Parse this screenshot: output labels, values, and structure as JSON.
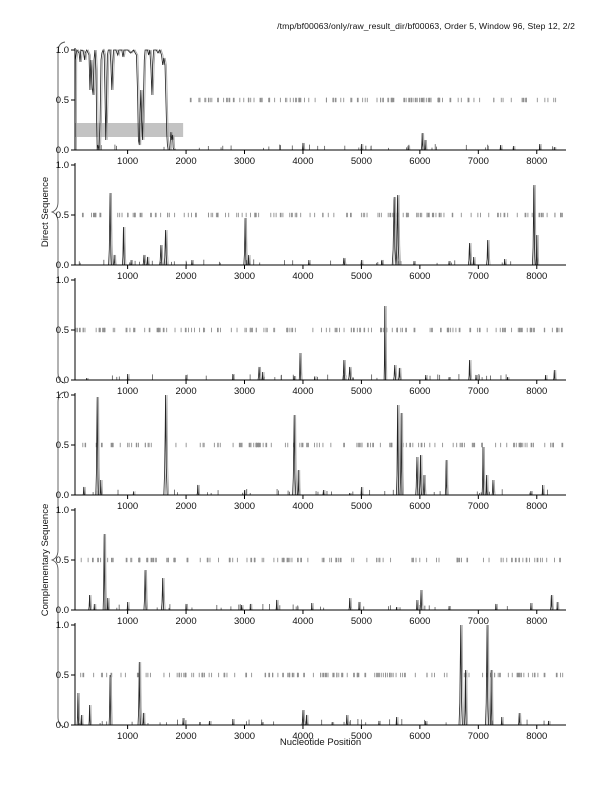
{
  "title": "/tmp/bf00063/only/raw_result_dir/bf00063, Order 5, Window 96, Step 12, 2/2",
  "xlabel": "Nucleotide Position",
  "group_labels": {
    "top": "Direct Sequence",
    "bottom": "Complementary Sequence"
  },
  "colors": {
    "curve": "#222222",
    "curve_shadow": "#a8a8a8",
    "axis": "#000000",
    "ruler_tick": "#8f8f8f",
    "highlight_bar": "#c3c3c3",
    "background": "#ffffff"
  },
  "chart_data": {
    "type": "line",
    "title": "/tmp/bf00063/only/raw_result_dir/bf00063, Order 5, Window 96, Step 12, 2/2",
    "xlabel": "Nucleotide Position",
    "ylabel": "",
    "xlim": [
      100,
      8500
    ],
    "ylim": [
      0,
      1
    ],
    "xticks": [
      1000,
      2000,
      3000,
      4000,
      5000,
      6000,
      7000,
      8000
    ],
    "yticks": [
      0,
      0.5,
      1
    ],
    "grid": false,
    "legend": "none",
    "groups": [
      {
        "label": "Direct Sequence",
        "subplots": [
          0,
          1,
          2
        ]
      },
      {
        "label": "Complementary Sequence",
        "subplots": [
          3,
          4,
          5
        ]
      }
    ],
    "subplots": [
      {
        "name": "direct-1",
        "highlight_bar": {
          "x0": 100,
          "x1": 1950,
          "y0": 0.13,
          "y1": 0.27
        },
        "ruler_ticks": {
          "seed": 101,
          "count": 115,
          "xmin": 2050,
          "xmax": 8460,
          "y": 0.5
        },
        "baseline_ticks": {
          "seed": 11,
          "count": 34
        },
        "polyline": [
          [
            100,
            0
          ],
          [
            105,
            0.9
          ],
          [
            130,
            1.0
          ],
          [
            170,
            0.97
          ],
          [
            185,
            0.88
          ],
          [
            200,
            1.0
          ],
          [
            240,
            0.99
          ],
          [
            265,
            0.9
          ],
          [
            275,
            0.97
          ],
          [
            300,
            1.0
          ],
          [
            340,
            0.95
          ],
          [
            355,
            0.6
          ],
          [
            370,
            0.9
          ],
          [
            395,
            0.62
          ],
          [
            410,
            0.55
          ],
          [
            425,
            0.9
          ],
          [
            440,
            1.0
          ],
          [
            460,
            0.8
          ],
          [
            470,
            0.3
          ],
          [
            480,
            0.0
          ],
          [
            490,
            0.05
          ],
          [
            510,
            0.0
          ],
          [
            530,
            0.3
          ],
          [
            545,
            0.9
          ],
          [
            560,
            0.97
          ],
          [
            580,
            1.0
          ],
          [
            600,
            0.95
          ],
          [
            615,
            0.5
          ],
          [
            625,
            0.1
          ],
          [
            640,
            0.5
          ],
          [
            655,
            0.95
          ],
          [
            670,
            1.0
          ],
          [
            700,
            1.0
          ],
          [
            715,
            0.85
          ],
          [
            730,
            0.6
          ],
          [
            745,
            0.85
          ],
          [
            760,
            1.0
          ],
          [
            800,
            1.0
          ],
          [
            830,
            0.95
          ],
          [
            850,
            1.0
          ],
          [
            900,
            1.0
          ],
          [
            920,
            0.93
          ],
          [
            940,
            1.0
          ],
          [
            1000,
            1.0
          ],
          [
            1050,
            0.97
          ],
          [
            1100,
            1.0
          ],
          [
            1150,
            0.95
          ],
          [
            1170,
            0.6
          ],
          [
            1185,
            0.1
          ],
          [
            1200,
            0.05
          ],
          [
            1215,
            0.4
          ],
          [
            1225,
            0.6
          ],
          [
            1240,
            0.3
          ],
          [
            1255,
            0.1
          ],
          [
            1270,
            0.5
          ],
          [
            1285,
            0.9
          ],
          [
            1300,
            1.0
          ],
          [
            1340,
            1.0
          ],
          [
            1360,
            0.95
          ],
          [
            1380,
            1.0
          ],
          [
            1400,
            0.8
          ],
          [
            1415,
            0.55
          ],
          [
            1430,
            0.85
          ],
          [
            1445,
            1.0
          ],
          [
            1490,
            1.0
          ],
          [
            1520,
            0.97
          ],
          [
            1550,
            1.0
          ],
          [
            1580,
            0.95
          ],
          [
            1600,
            0.85
          ],
          [
            1620,
            0.92
          ],
          [
            1640,
            0.85
          ],
          [
            1655,
            0.5
          ],
          [
            1670,
            0.15
          ],
          [
            1680,
            0.05
          ],
          [
            1695,
            0.0
          ],
          [
            1720,
            0.0
          ],
          [
            1740,
            0.18
          ],
          [
            1755,
            0.1
          ],
          [
            1770,
            0.15
          ],
          [
            1780,
            0.02
          ],
          [
            1800,
            0.0
          ]
        ],
        "peaks": [
          [
            4000,
            0.07,
            20
          ],
          [
            5000,
            0.06,
            18
          ],
          [
            5800,
            0.04,
            16
          ],
          [
            6040,
            0.17,
            30
          ],
          [
            6090,
            0.1,
            20
          ],
          [
            7380,
            0.05,
            18
          ],
          [
            7600,
            0.04,
            16
          ],
          [
            8050,
            0.06,
            18
          ],
          [
            8300,
            0.03,
            14
          ]
        ]
      },
      {
        "name": "direct-2",
        "ruler_ticks": {
          "seed": 202,
          "count": 125,
          "xmin": 150,
          "xmax": 8460,
          "y": 0.5
        },
        "baseline_ticks": {
          "seed": 22,
          "count": 34
        },
        "peaks": [
          [
            700,
            0.72,
            45
          ],
          [
            770,
            0.1,
            25
          ],
          [
            930,
            0.38,
            35
          ],
          [
            1060,
            0.05,
            18
          ],
          [
            1280,
            0.1,
            30
          ],
          [
            1340,
            0.08,
            22
          ],
          [
            1570,
            0.2,
            40
          ],
          [
            1650,
            0.35,
            45
          ],
          [
            2100,
            0.05,
            16
          ],
          [
            3010,
            0.47,
            40
          ],
          [
            3070,
            0.1,
            20
          ],
          [
            4100,
            0.05,
            16
          ],
          [
            4700,
            0.07,
            30
          ],
          [
            5000,
            0.05,
            16
          ],
          [
            5350,
            0.05,
            16
          ],
          [
            5560,
            0.68,
            60
          ],
          [
            5620,
            0.7,
            50
          ],
          [
            5900,
            0.04,
            14
          ],
          [
            6500,
            0.04,
            14
          ],
          [
            6850,
            0.22,
            40
          ],
          [
            6920,
            0.08,
            20
          ],
          [
            7160,
            0.25,
            35
          ],
          [
            7450,
            0.06,
            18
          ],
          [
            7950,
            0.8,
            45
          ],
          [
            8000,
            0.3,
            20
          ]
        ]
      },
      {
        "name": "direct-3",
        "ruler_ticks": {
          "seed": 303,
          "count": 135,
          "xmin": 110,
          "xmax": 8460,
          "y": 0.5
        },
        "baseline_ticks": {
          "seed": 33,
          "count": 32
        },
        "peaks": [
          [
            300,
            0.02,
            12
          ],
          [
            1000,
            0.06,
            14
          ],
          [
            2000,
            0.05,
            14
          ],
          [
            2800,
            0.06,
            14
          ],
          [
            3250,
            0.13,
            35
          ],
          [
            3310,
            0.08,
            20
          ],
          [
            3850,
            0.04,
            14
          ],
          [
            3950,
            0.27,
            25
          ],
          [
            4200,
            0.03,
            12
          ],
          [
            4700,
            0.2,
            35
          ],
          [
            4800,
            0.13,
            40
          ],
          [
            5400,
            0.74,
            22
          ],
          [
            5570,
            0.15,
            35
          ],
          [
            5650,
            0.12,
            30
          ],
          [
            6100,
            0.05,
            16
          ],
          [
            6500,
            0.03,
            12
          ],
          [
            6850,
            0.2,
            28
          ],
          [
            6960,
            0.05,
            16
          ],
          [
            7500,
            0.03,
            12
          ],
          [
            8150,
            0.05,
            16
          ],
          [
            8300,
            0.1,
            25
          ]
        ]
      },
      {
        "name": "complementary-1",
        "ruler_ticks": {
          "seed": 404,
          "count": 120,
          "xmin": 150,
          "xmax": 8460,
          "y": 0.5
        },
        "baseline_ticks": {
          "seed": 44,
          "count": 34
        },
        "peaks": [
          [
            250,
            0.08,
            22
          ],
          [
            480,
            0.98,
            45
          ],
          [
            540,
            0.15,
            20
          ],
          [
            1100,
            0.03,
            12
          ],
          [
            1650,
            1.0,
            55
          ],
          [
            2200,
            0.1,
            22
          ],
          [
            3000,
            0.05,
            14
          ],
          [
            3850,
            0.8,
            50
          ],
          [
            3920,
            0.25,
            22
          ],
          [
            4350,
            0.05,
            20
          ],
          [
            4800,
            0.02,
            12
          ],
          [
            5000,
            0.08,
            16
          ],
          [
            5620,
            0.9,
            40
          ],
          [
            5680,
            0.82,
            35
          ],
          [
            5950,
            0.38,
            40
          ],
          [
            6010,
            0.4,
            35
          ],
          [
            6070,
            0.2,
            25
          ],
          [
            6450,
            0.35,
            28
          ],
          [
            7080,
            0.48,
            28
          ],
          [
            7140,
            0.2,
            20
          ],
          [
            7250,
            0.15,
            25
          ],
          [
            7900,
            0.04,
            14
          ],
          [
            8100,
            0.1,
            18
          ]
        ]
      },
      {
        "name": "complementary-2",
        "ruler_ticks": {
          "seed": 505,
          "count": 115,
          "xmin": 150,
          "xmax": 8460,
          "y": 0.5
        },
        "baseline_ticks": {
          "seed": 55,
          "count": 32
        },
        "peaks": [
          [
            350,
            0.15,
            28
          ],
          [
            430,
            0.06,
            16
          ],
          [
            600,
            0.76,
            35
          ],
          [
            660,
            0.12,
            20
          ],
          [
            1000,
            0.08,
            16
          ],
          [
            1300,
            0.4,
            40
          ],
          [
            1600,
            0.32,
            40
          ],
          [
            2000,
            0.06,
            16
          ],
          [
            2950,
            0.05,
            14
          ],
          [
            3100,
            0.06,
            14
          ],
          [
            3550,
            0.1,
            20
          ],
          [
            4150,
            0.07,
            16
          ],
          [
            4800,
            0.12,
            25
          ],
          [
            4960,
            0.08,
            18
          ],
          [
            5600,
            0.03,
            12
          ],
          [
            5950,
            0.1,
            20
          ],
          [
            6020,
            0.2,
            30
          ],
          [
            6500,
            0.04,
            12
          ],
          [
            7300,
            0.06,
            16
          ],
          [
            7900,
            0.07,
            16
          ],
          [
            8250,
            0.15,
            30
          ],
          [
            8350,
            0.08,
            16
          ]
        ]
      },
      {
        "name": "complementary-3",
        "ruler_ticks": {
          "seed": 606,
          "count": 135,
          "xmin": 150,
          "xmax": 8460,
          "y": 0.5
        },
        "baseline_ticks": {
          "seed": 66,
          "count": 34
        },
        "peaks": [
          [
            150,
            0.32,
            25
          ],
          [
            210,
            0.1,
            16
          ],
          [
            350,
            0.2,
            22
          ],
          [
            700,
            0.5,
            30
          ],
          [
            1200,
            0.63,
            40
          ],
          [
            1270,
            0.12,
            20
          ],
          [
            1950,
            0.07,
            18
          ],
          [
            2400,
            0.04,
            12
          ],
          [
            2800,
            0.06,
            14
          ],
          [
            3300,
            0.03,
            12
          ],
          [
            4000,
            0.15,
            30
          ],
          [
            4060,
            0.1,
            20
          ],
          [
            4500,
            0.03,
            12
          ],
          [
            4750,
            0.1,
            22
          ],
          [
            5300,
            0.04,
            12
          ],
          [
            5600,
            0.08,
            16
          ],
          [
            6100,
            0.04,
            12
          ],
          [
            6700,
            1.0,
            55
          ],
          [
            6780,
            0.55,
            30
          ],
          [
            7150,
            1.0,
            50
          ],
          [
            7220,
            0.55,
            25
          ],
          [
            7400,
            0.08,
            18
          ],
          [
            7700,
            0.12,
            25
          ],
          [
            8200,
            0.04,
            12
          ]
        ]
      }
    ]
  }
}
